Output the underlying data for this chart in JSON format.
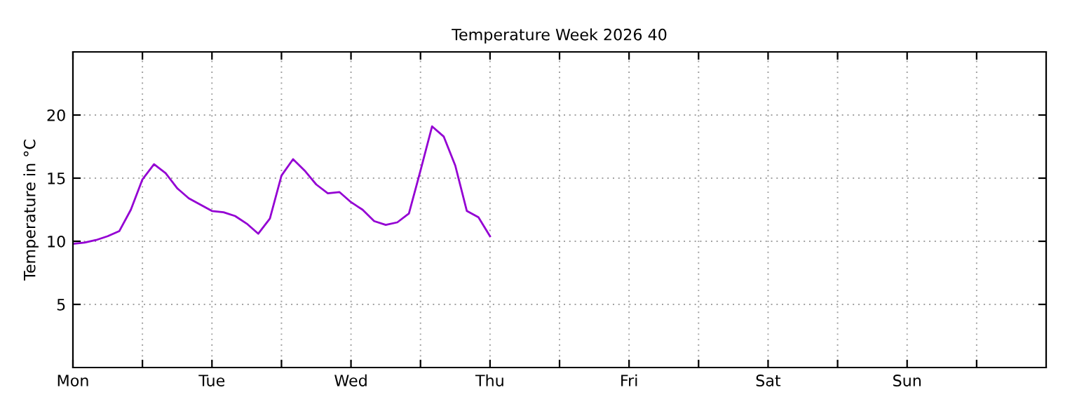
{
  "chart_data": {
    "type": "line",
    "title": "Temperature Week 2026 40",
    "ylabel": "Temperature in °C",
    "categories": [
      "Mon",
      null,
      null,
      null,
      null,
      null,
      null,
      null,
      null,
      null,
      null,
      null,
      "Tue",
      null,
      null,
      null,
      null,
      null,
      null,
      null,
      null,
      null,
      null,
      null,
      "Wed",
      null,
      null,
      null,
      null,
      null,
      null,
      null,
      null,
      null,
      null,
      null,
      "Thu",
      null,
      null,
      null,
      null,
      null,
      null,
      null,
      null,
      null,
      null,
      null,
      "Fri",
      null,
      null,
      null,
      null,
      null,
      null,
      null,
      null,
      null,
      null,
      null,
      "Sat",
      null,
      null,
      null,
      null,
      null,
      null,
      null,
      null,
      null,
      null,
      null,
      "Sun",
      null,
      null,
      null,
      null,
      null,
      null,
      null,
      null,
      null,
      null,
      null
    ],
    "series": [
      {
        "color": "#9400d3",
        "values": [
          9.8,
          9.9,
          10.1,
          10.4,
          10.8,
          12.5,
          14.9,
          16.1,
          15.4,
          14.2,
          13.4,
          12.9,
          12.4,
          12.3,
          12.0,
          11.4,
          10.6,
          11.8,
          15.2,
          16.5,
          15.6,
          14.5,
          13.8,
          13.9,
          13.1,
          12.5,
          11.6,
          11.3,
          11.5,
          12.2,
          15.6,
          19.1,
          18.3,
          16.0,
          12.4,
          11.9,
          10.4,
          null,
          null,
          null,
          null,
          null,
          null,
          null,
          null,
          null,
          null,
          null,
          null,
          null,
          null,
          null,
          null,
          null,
          null,
          null,
          null,
          null,
          null,
          null,
          null,
          null,
          null,
          null,
          null,
          null,
          null,
          null,
          null,
          null,
          null,
          null,
          null,
          null,
          null,
          null,
          null,
          null,
          null,
          null,
          null,
          null,
          null,
          null
        ]
      }
    ],
    "ylim": [
      0,
      25
    ],
    "yticks": [
      5,
      10,
      15,
      20
    ],
    "grid": true,
    "marker": "none",
    "line_style": "solid"
  }
}
